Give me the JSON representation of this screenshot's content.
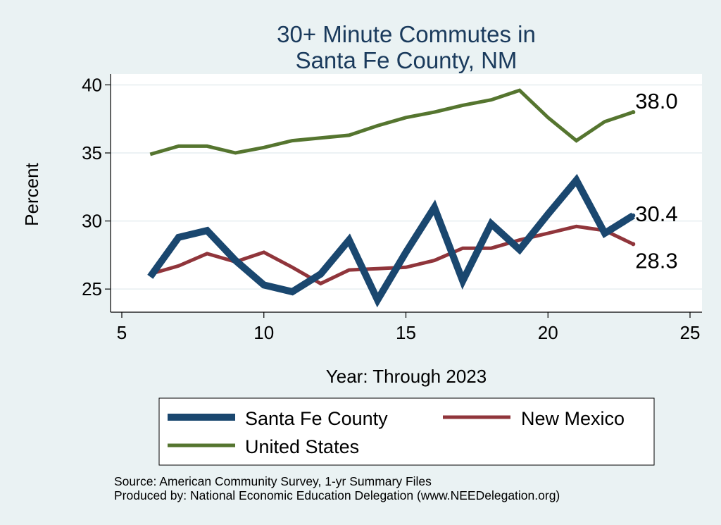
{
  "chart_data": {
    "type": "line",
    "title": [
      "30+ Minute Commutes in",
      "Santa Fe County, NM"
    ],
    "xlabel": "Year: Through 2023",
    "ylabel": "Percent",
    "xlim": [
      5,
      25
    ],
    "ylim": [
      23.3,
      40.8
    ],
    "xticks": [
      5,
      10,
      15,
      20,
      25
    ],
    "yticks": [
      25,
      30,
      35,
      40
    ],
    "x": [
      6,
      7,
      8,
      9,
      10,
      11,
      12,
      13,
      14,
      15,
      16,
      17,
      18,
      19,
      20,
      21,
      22,
      23
    ],
    "series": [
      {
        "name": "Santa Fe County",
        "color": "#1a476f",
        "width": 10,
        "values": [
          25.9,
          28.8,
          29.3,
          27.1,
          25.3,
          24.8,
          26.1,
          28.6,
          24.2,
          27.7,
          31.0,
          25.6,
          29.8,
          27.9,
          30.5,
          33.0,
          29.1,
          30.4
        ],
        "end_label": "30.4"
      },
      {
        "name": "New Mexico",
        "color": "#90353b",
        "width": 5,
        "values": [
          26.1,
          26.7,
          27.6,
          27.0,
          27.7,
          26.6,
          25.4,
          26.4,
          26.5,
          26.6,
          27.1,
          28.0,
          28.0,
          28.6,
          29.1,
          29.6,
          29.3,
          28.3
        ],
        "end_label": "28.3"
      },
      {
        "name": "United States",
        "color": "#55752f",
        "width": 5,
        "values": [
          34.9,
          35.5,
          35.5,
          35.0,
          35.4,
          35.9,
          36.1,
          36.3,
          37.0,
          37.6,
          38.0,
          38.5,
          38.9,
          39.6,
          37.6,
          35.9,
          37.3,
          38.0
        ],
        "end_label": "38.0"
      }
    ],
    "grid": true,
    "legend": "bottom"
  },
  "colors": {
    "background": "#eaf2f3",
    "plot_background": "#ffffff",
    "title": "#1a3a5c"
  },
  "notes": {
    "source": "Source: American Community Survey, 1-yr Summary Files",
    "producer": "Produced by: National Economic Education Delegation (www.NEEDelegation.org)"
  }
}
